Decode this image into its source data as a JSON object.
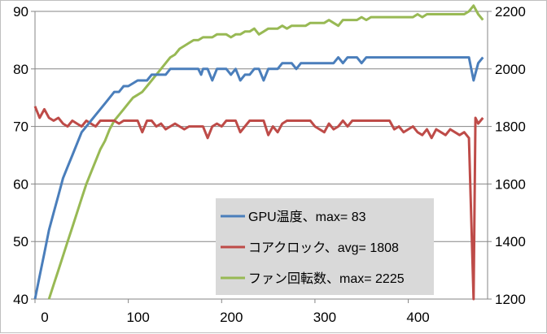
{
  "chart_data": {
    "type": "line",
    "title": "",
    "xlabel": "",
    "ylabel": "",
    "y2label": "",
    "xlim": [
      0,
      485
    ],
    "ylim": [
      40,
      90
    ],
    "y2lim": [
      1200,
      2200
    ],
    "x_ticks": [
      0,
      100,
      200,
      300,
      400
    ],
    "y_ticks": [
      40,
      50,
      60,
      70,
      80,
      90
    ],
    "y2_ticks": [
      1200,
      1400,
      1600,
      1800,
      2000,
      2200
    ],
    "grid": "horizontal",
    "legend_position": "lower-right",
    "series": [
      {
        "name": "GPU温度、max= 83",
        "axis": "left",
        "color": "#4a7ebb",
        "points": [
          [
            0,
            40
          ],
          [
            5,
            44
          ],
          [
            10,
            48
          ],
          [
            15,
            52
          ],
          [
            20,
            55
          ],
          [
            25,
            58
          ],
          [
            30,
            61
          ],
          [
            35,
            63
          ],
          [
            40,
            65
          ],
          [
            45,
            67
          ],
          [
            50,
            69
          ],
          [
            55,
            70
          ],
          [
            60,
            71
          ],
          [
            65,
            72
          ],
          [
            70,
            73
          ],
          [
            75,
            74
          ],
          [
            80,
            75
          ],
          [
            85,
            76
          ],
          [
            90,
            76
          ],
          [
            95,
            77
          ],
          [
            100,
            77
          ],
          [
            105,
            77.5
          ],
          [
            110,
            78
          ],
          [
            115,
            78
          ],
          [
            120,
            78
          ],
          [
            125,
            79
          ],
          [
            130,
            79
          ],
          [
            135,
            79
          ],
          [
            140,
            79
          ],
          [
            145,
            80
          ],
          [
            150,
            80
          ],
          [
            155,
            80
          ],
          [
            160,
            80
          ],
          [
            165,
            80
          ],
          [
            170,
            80
          ],
          [
            175,
            80
          ],
          [
            178,
            79
          ],
          [
            180,
            80
          ],
          [
            185,
            80
          ],
          [
            190,
            78
          ],
          [
            195,
            80
          ],
          [
            200,
            80
          ],
          [
            205,
            80
          ],
          [
            210,
            79
          ],
          [
            215,
            80
          ],
          [
            220,
            78
          ],
          [
            225,
            79
          ],
          [
            230,
            79
          ],
          [
            235,
            80
          ],
          [
            240,
            80
          ],
          [
            245,
            78
          ],
          [
            250,
            80
          ],
          [
            255,
            80
          ],
          [
            260,
            80
          ],
          [
            265,
            81
          ],
          [
            270,
            81
          ],
          [
            275,
            81
          ],
          [
            280,
            80
          ],
          [
            285,
            81
          ],
          [
            290,
            81
          ],
          [
            295,
            81
          ],
          [
            300,
            81
          ],
          [
            305,
            81
          ],
          [
            310,
            81
          ],
          [
            315,
            81
          ],
          [
            320,
            81
          ],
          [
            325,
            82
          ],
          [
            330,
            81
          ],
          [
            335,
            82
          ],
          [
            340,
            82
          ],
          [
            345,
            82
          ],
          [
            350,
            81
          ],
          [
            355,
            82
          ],
          [
            360,
            82
          ],
          [
            365,
            82
          ],
          [
            370,
            82
          ],
          [
            375,
            82
          ],
          [
            380,
            82
          ],
          [
            385,
            82
          ],
          [
            390,
            82
          ],
          [
            395,
            82
          ],
          [
            400,
            82
          ],
          [
            405,
            82
          ],
          [
            410,
            82
          ],
          [
            415,
            82
          ],
          [
            420,
            82
          ],
          [
            425,
            82
          ],
          [
            430,
            82
          ],
          [
            435,
            82
          ],
          [
            440,
            82
          ],
          [
            445,
            82
          ],
          [
            450,
            82
          ],
          [
            455,
            82
          ],
          [
            460,
            82
          ],
          [
            465,
            82
          ],
          [
            470,
            78
          ],
          [
            475,
            81
          ],
          [
            480,
            82
          ]
        ]
      },
      {
        "name": "コアクロック、avg= 1808",
        "axis": "right",
        "color": "#be4b48",
        "points": [
          [
            0,
            1870
          ],
          [
            5,
            1830
          ],
          [
            10,
            1860
          ],
          [
            15,
            1830
          ],
          [
            20,
            1820
          ],
          [
            25,
            1830
          ],
          [
            30,
            1810
          ],
          [
            35,
            1800
          ],
          [
            40,
            1820
          ],
          [
            45,
            1810
          ],
          [
            50,
            1800
          ],
          [
            55,
            1820
          ],
          [
            60,
            1810
          ],
          [
            65,
            1800
          ],
          [
            70,
            1820
          ],
          [
            75,
            1820
          ],
          [
            80,
            1820
          ],
          [
            85,
            1820
          ],
          [
            90,
            1810
          ],
          [
            95,
            1820
          ],
          [
            100,
            1820
          ],
          [
            105,
            1820
          ],
          [
            110,
            1820
          ],
          [
            115,
            1780
          ],
          [
            120,
            1820
          ],
          [
            125,
            1820
          ],
          [
            130,
            1800
          ],
          [
            135,
            1810
          ],
          [
            140,
            1790
          ],
          [
            145,
            1800
          ],
          [
            150,
            1810
          ],
          [
            155,
            1800
          ],
          [
            160,
            1790
          ],
          [
            165,
            1800
          ],
          [
            170,
            1800
          ],
          [
            175,
            1800
          ],
          [
            180,
            1800
          ],
          [
            185,
            1760
          ],
          [
            190,
            1800
          ],
          [
            195,
            1810
          ],
          [
            200,
            1800
          ],
          [
            205,
            1820
          ],
          [
            210,
            1820
          ],
          [
            215,
            1820
          ],
          [
            220,
            1780
          ],
          [
            225,
            1800
          ],
          [
            230,
            1820
          ],
          [
            235,
            1820
          ],
          [
            240,
            1820
          ],
          [
            245,
            1820
          ],
          [
            250,
            1770
          ],
          [
            255,
            1800
          ],
          [
            260,
            1780
          ],
          [
            265,
            1810
          ],
          [
            270,
            1820
          ],
          [
            275,
            1820
          ],
          [
            280,
            1820
          ],
          [
            285,
            1820
          ],
          [
            290,
            1820
          ],
          [
            295,
            1820
          ],
          [
            300,
            1800
          ],
          [
            305,
            1790
          ],
          [
            310,
            1780
          ],
          [
            315,
            1810
          ],
          [
            320,
            1790
          ],
          [
            325,
            1800
          ],
          [
            330,
            1820
          ],
          [
            335,
            1800
          ],
          [
            340,
            1820
          ],
          [
            345,
            1820
          ],
          [
            350,
            1820
          ],
          [
            355,
            1820
          ],
          [
            360,
            1820
          ],
          [
            365,
            1820
          ],
          [
            370,
            1820
          ],
          [
            375,
            1820
          ],
          [
            380,
            1820
          ],
          [
            385,
            1790
          ],
          [
            390,
            1800
          ],
          [
            395,
            1780
          ],
          [
            400,
            1790
          ],
          [
            405,
            1800
          ],
          [
            410,
            1780
          ],
          [
            415,
            1770
          ],
          [
            420,
            1790
          ],
          [
            425,
            1760
          ],
          [
            430,
            1790
          ],
          [
            435,
            1780
          ],
          [
            440,
            1770
          ],
          [
            445,
            1790
          ],
          [
            450,
            1780
          ],
          [
            455,
            1770
          ],
          [
            460,
            1780
          ],
          [
            465,
            1760
          ],
          [
            470,
            1200
          ],
          [
            472,
            1830
          ],
          [
            475,
            1810
          ],
          [
            480,
            1830
          ]
        ]
      },
      {
        "name": "ファン回転数、max= 2225",
        "axis": "right",
        "color": "#98b954",
        "points": [
          [
            15,
            1200
          ],
          [
            20,
            1250
          ],
          [
            25,
            1300
          ],
          [
            30,
            1350
          ],
          [
            35,
            1400
          ],
          [
            40,
            1450
          ],
          [
            45,
            1500
          ],
          [
            50,
            1550
          ],
          [
            55,
            1600
          ],
          [
            60,
            1640
          ],
          [
            65,
            1680
          ],
          [
            70,
            1720
          ],
          [
            75,
            1750
          ],
          [
            80,
            1790
          ],
          [
            85,
            1820
          ],
          [
            90,
            1840
          ],
          [
            95,
            1860
          ],
          [
            100,
            1880
          ],
          [
            105,
            1900
          ],
          [
            110,
            1910
          ],
          [
            115,
            1920
          ],
          [
            120,
            1940
          ],
          [
            125,
            1960
          ],
          [
            130,
            1980
          ],
          [
            135,
            2000
          ],
          [
            140,
            2020
          ],
          [
            145,
            2040
          ],
          [
            150,
            2050
          ],
          [
            155,
            2070
          ],
          [
            160,
            2080
          ],
          [
            165,
            2090
          ],
          [
            170,
            2100
          ],
          [
            175,
            2100
          ],
          [
            180,
            2110
          ],
          [
            185,
            2110
          ],
          [
            190,
            2110
          ],
          [
            195,
            2120
          ],
          [
            200,
            2120
          ],
          [
            205,
            2120
          ],
          [
            210,
            2110
          ],
          [
            215,
            2120
          ],
          [
            220,
            2120
          ],
          [
            225,
            2130
          ],
          [
            230,
            2130
          ],
          [
            235,
            2140
          ],
          [
            240,
            2120
          ],
          [
            245,
            2130
          ],
          [
            250,
            2140
          ],
          [
            255,
            2140
          ],
          [
            260,
            2140
          ],
          [
            265,
            2150
          ],
          [
            270,
            2140
          ],
          [
            275,
            2150
          ],
          [
            280,
            2150
          ],
          [
            285,
            2150
          ],
          [
            290,
            2150
          ],
          [
            295,
            2160
          ],
          [
            300,
            2160
          ],
          [
            305,
            2160
          ],
          [
            310,
            2160
          ],
          [
            315,
            2170
          ],
          [
            320,
            2160
          ],
          [
            325,
            2150
          ],
          [
            330,
            2170
          ],
          [
            335,
            2170
          ],
          [
            340,
            2170
          ],
          [
            345,
            2170
          ],
          [
            350,
            2180
          ],
          [
            355,
            2170
          ],
          [
            360,
            2180
          ],
          [
            365,
            2180
          ],
          [
            370,
            2180
          ],
          [
            375,
            2180
          ],
          [
            380,
            2180
          ],
          [
            385,
            2180
          ],
          [
            390,
            2180
          ],
          [
            395,
            2180
          ],
          [
            400,
            2180
          ],
          [
            405,
            2180
          ],
          [
            410,
            2190
          ],
          [
            415,
            2180
          ],
          [
            420,
            2190
          ],
          [
            425,
            2190
          ],
          [
            430,
            2190
          ],
          [
            435,
            2190
          ],
          [
            440,
            2190
          ],
          [
            445,
            2190
          ],
          [
            450,
            2190
          ],
          [
            455,
            2190
          ],
          [
            460,
            2190
          ],
          [
            465,
            2200
          ],
          [
            470,
            2220
          ],
          [
            475,
            2190
          ],
          [
            480,
            2170
          ]
        ]
      }
    ]
  }
}
